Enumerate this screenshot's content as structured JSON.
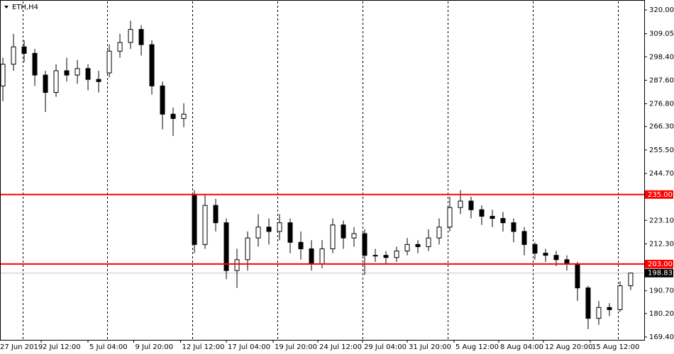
{
  "chart_data": {
    "type": "candlestick",
    "title": "ETH,H4",
    "open": [
      285,
      295,
      303,
      300,
      290,
      282,
      292,
      290,
      293,
      288,
      291,
      301,
      305,
      311,
      304,
      285,
      272,
      270,
      235,
      212,
      230,
      222,
      200,
      205,
      215,
      220,
      218,
      222,
      213,
      210,
      203,
      210,
      221,
      215,
      217,
      207,
      207,
      206,
      209,
      212,
      211,
      215,
      220,
      229,
      232,
      228,
      225,
      224,
      222,
      218,
      212,
      208,
      207,
      205,
      203,
      192,
      178,
      183,
      182,
      193
    ],
    "high": [
      298,
      309,
      306,
      302,
      292,
      295,
      298,
      297,
      295,
      292,
      304,
      309,
      315,
      313,
      306,
      287,
      275,
      277,
      237,
      235,
      233,
      224,
      210,
      218,
      226,
      224,
      226,
      224,
      218,
      214,
      214,
      224,
      223,
      220,
      219,
      210,
      209,
      211,
      215,
      214,
      219,
      224,
      234,
      237,
      234,
      230,
      228,
      227,
      224,
      220,
      213,
      210,
      209,
      207,
      204,
      193,
      186,
      185,
      195,
      199
    ],
    "low": [
      278,
      292,
      296,
      285,
      273,
      280,
      287,
      286,
      283,
      282,
      289,
      298,
      302,
      299,
      281,
      265,
      262,
      266,
      208,
      210,
      218,
      196,
      192,
      200,
      211,
      212,
      214,
      208,
      205,
      200,
      201,
      208,
      210,
      211,
      198,
      204,
      203,
      204,
      207,
      208,
      209,
      212,
      218,
      226,
      224,
      221,
      220,
      218,
      213,
      207,
      205,
      204,
      202,
      200,
      186,
      173,
      175,
      179,
      181,
      191
    ],
    "close": [
      295,
      303,
      300,
      290,
      282,
      292,
      290,
      293,
      288,
      287,
      301,
      305,
      311,
      304,
      285,
      272,
      270,
      272,
      212,
      230,
      222,
      200,
      205,
      215,
      220,
      218,
      222,
      213,
      210,
      203,
      210,
      221,
      215,
      217,
      207,
      207,
      206,
      209,
      212,
      211,
      215,
      220,
      229,
      232,
      228,
      225,
      224,
      222,
      218,
      212,
      208,
      207,
      205,
      203,
      192,
      178,
      183,
      182,
      193,
      198.83
    ],
    "xlim": [
      -0.27,
      60.27
    ],
    "ylim": [
      169.4,
      320
    ],
    "yticks": [
      {
        "value": 320,
        "label": "320.00"
      },
      {
        "value": 309.05,
        "label": "309.05"
      },
      {
        "value": 298.4,
        "label": "298.40"
      },
      {
        "value": 287.6,
        "label": "287.60"
      },
      {
        "value": 276.8,
        "label": "276.80"
      },
      {
        "value": 266.3,
        "label": "266.30"
      },
      {
        "value": 255.5,
        "label": "255.50"
      },
      {
        "value": 244.7,
        "label": "244.70"
      },
      {
        "value": 223.1,
        "label": "223.10"
      },
      {
        "value": 212.3,
        "label": "212.30"
      },
      {
        "value": 190.7,
        "label": "190.70"
      },
      {
        "value": 180.2,
        "label": "180.20"
      },
      {
        "value": 169.4,
        "label": "169.40"
      }
    ],
    "xticks": [
      {
        "value": -0.4,
        "label": "27 Jun 2019"
      },
      {
        "value": 3.6,
        "label": "2 Jul 12:00"
      },
      {
        "value": 8.0,
        "label": "5 Jul 04:00"
      },
      {
        "value": 12.3,
        "label": "9 Jul 20:00"
      },
      {
        "value": 16.7,
        "label": "12 Jul 12:00"
      },
      {
        "value": 21.0,
        "label": "17 Jul 04:00"
      },
      {
        "value": 25.4,
        "label": "19 Jul 20:00"
      },
      {
        "value": 29.6,
        "label": "24 Jul 12:00"
      },
      {
        "value": 33.8,
        "label": "29 Jul 04:00"
      },
      {
        "value": 38.0,
        "label": "31 Jul 20:00"
      },
      {
        "value": 42.4,
        "label": "5 Aug 12:00"
      },
      {
        "value": 46.6,
        "label": "8 Aug 04:00"
      },
      {
        "value": 50.8,
        "label": "12 Aug 20:00"
      },
      {
        "value": 55.2,
        "label": "15 Aug 12:00"
      }
    ],
    "levels": [
      {
        "value": 235,
        "label": "235.00",
        "color": "#ff0000"
      },
      {
        "value": 203,
        "label": "203.00",
        "color": "#ff0000"
      }
    ],
    "last_price": 198.83
  }
}
